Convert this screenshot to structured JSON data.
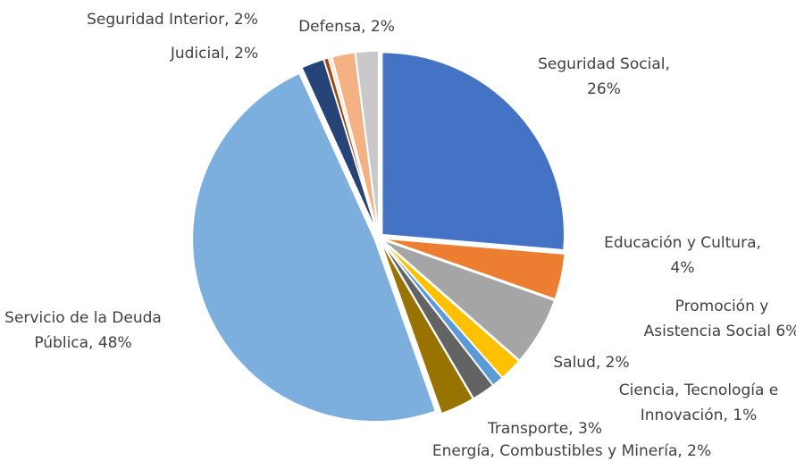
{
  "chart_data": {
    "type": "pie",
    "labels": [
      [
        "Seguridad Social,",
        "26%"
      ],
      [
        "Educación y Cultura,",
        "4%"
      ],
      [
        "Promoción y",
        "Asistencia Social 6%"
      ],
      [
        "Salud, 2%"
      ],
      [
        "Ciencia, Tecnología e",
        "Innovación, 1%"
      ],
      [
        "Energía, Combustibles y Minería, 2%"
      ],
      [
        "Transporte, 3%"
      ],
      [
        "Servicio de la Deuda",
        "Pública, 48%"
      ],
      [
        "Judicial, 2%"
      ],
      null,
      null,
      [
        "Seguridad Interior, 2%"
      ],
      [
        "Defensa, 2%"
      ]
    ],
    "values": [
      26,
      4,
      6,
      2,
      1,
      2,
      3,
      48,
      2,
      0.4,
      0.3,
      2,
      2
    ],
    "colors": [
      "#4472c4",
      "#ed7d31",
      "#a5a5a5",
      "#ffc000",
      "#5b9bd5",
      "#636363",
      "#997300",
      "#7cafdd",
      "#264478",
      "#9e480e",
      "#fbe5d6",
      "#f4b183",
      "#c9c9c9"
    ]
  }
}
